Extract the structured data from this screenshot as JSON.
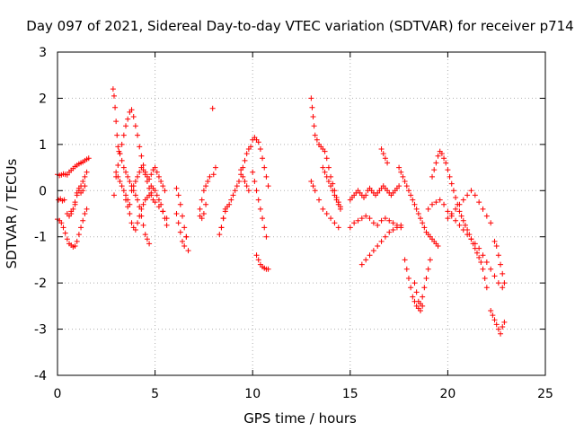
{
  "chart_data": {
    "type": "scatter",
    "title": "Day 097 of 2021, Sidereal Day-to-day VTEC variation (SDTVAR) for receiver p714",
    "xlabel": "GPS time / hours",
    "ylabel": "SDTVAR / TECUs",
    "xlim": [
      0,
      25
    ],
    "ylim": [
      -4,
      3
    ],
    "xticks": [
      "0",
      "5",
      "10",
      "15",
      "20",
      "25"
    ],
    "yticks": [
      "3",
      "2",
      "1",
      "0",
      "-1",
      "-2",
      "-3",
      "-4"
    ],
    "grid": true,
    "marker": "+",
    "color": "#ff0000",
    "series": [
      {
        "name": "SDTVAR",
        "x": [
          0.0,
          0.1,
          0.2,
          0.3,
          0.4,
          0.5,
          0.6,
          0.7,
          0.8,
          0.9,
          1.0,
          1.1,
          1.2,
          1.3,
          1.4,
          1.5,
          1.6,
          0.0,
          0.1,
          0.2,
          0.3,
          0.4,
          0.5,
          0.6,
          0.7,
          0.8,
          0.9,
          1.0,
          1.1,
          1.2,
          1.3,
          1.4,
          1.5,
          0.05,
          0.15,
          0.25,
          0.35,
          0.5,
          0.7,
          0.9,
          1.0,
          1.1,
          1.2,
          1.3,
          1.4,
          1.5,
          0.6,
          0.7,
          0.8,
          0.9,
          1.0,
          1.1,
          1.2,
          1.3,
          1.4,
          2.85,
          2.9,
          2.95,
          3.0,
          3.05,
          3.1,
          3.15,
          3.2,
          3.3,
          3.4,
          3.5,
          3.6,
          3.7,
          3.8,
          3.9,
          4.0,
          4.1,
          4.2,
          4.3,
          4.4,
          4.5,
          4.6,
          4.7,
          4.8,
          4.9,
          5.0,
          5.1,
          5.2,
          5.3,
          5.4,
          5.5,
          5.6,
          2.9,
          3.0,
          3.1,
          3.2,
          3.3,
          3.4,
          3.5,
          3.6,
          3.7,
          3.8,
          3.9,
          4.0,
          4.1,
          4.2,
          4.3,
          4.4,
          4.5,
          4.6,
          4.7,
          4.8,
          4.9,
          5.0,
          5.1,
          5.2,
          5.3,
          5.4,
          5.5,
          3.0,
          3.1,
          3.2,
          3.3,
          3.4,
          3.5,
          3.6,
          3.7,
          3.8,
          3.9,
          4.0,
          4.1,
          4.2,
          4.3,
          4.4,
          4.5,
          4.6,
          4.7,
          4.8,
          4.9,
          5.0,
          5.2,
          5.4,
          5.6,
          3.5,
          3.6,
          3.7,
          3.8,
          3.9,
          4.0,
          4.1,
          4.2,
          4.3,
          4.4,
          4.5,
          4.6,
          4.7,
          4.8,
          6.1,
          6.2,
          6.3,
          6.4,
          6.5,
          6.6,
          6.7,
          6.1,
          6.2,
          6.3,
          6.4,
          6.5,
          6.6,
          7.3,
          7.4,
          7.5,
          7.6,
          7.7,
          7.8,
          7.3,
          7.4,
          7.5,
          7.6,
          8.0,
          8.1,
          8.3,
          8.4,
          8.5,
          8.6,
          8.7,
          8.8,
          8.9,
          9.0,
          9.1,
          9.2,
          9.3,
          9.4,
          9.5,
          9.6,
          9.7,
          9.8,
          9.9,
          8.4,
          8.5,
          8.6,
          9.4,
          9.5,
          9.6,
          9.7,
          9.8,
          10.0,
          10.1,
          10.2,
          10.3,
          10.4,
          10.5,
          10.6,
          10.7,
          10.8,
          10.0,
          10.1,
          10.2,
          10.3,
          10.4,
          10.5,
          10.6,
          10.7,
          10.2,
          10.3,
          10.4,
          10.5,
          10.6,
          10.7,
          10.8,
          13.0,
          13.05,
          13.1,
          13.15,
          13.2,
          13.3,
          13.4,
          13.5,
          13.6,
          13.7,
          13.8,
          13.9,
          14.0,
          14.1,
          14.2,
          14.3,
          14.4,
          14.5,
          13.0,
          13.1,
          13.2,
          13.4,
          13.6,
          13.8,
          14.0,
          14.2,
          14.4,
          13.6,
          13.7,
          13.8,
          13.9,
          14.0,
          14.1,
          14.2,
          14.3,
          14.4,
          14.5,
          15.0,
          15.1,
          15.2,
          15.3,
          15.4,
          15.5,
          15.6,
          15.7,
          15.8,
          15.9,
          16.0,
          16.1,
          16.2,
          16.3,
          16.4,
          16.5,
          16.6,
          16.7,
          16.8,
          16.9,
          17.0,
          17.1,
          17.2,
          17.3,
          17.4,
          17.5,
          15.0,
          15.2,
          15.4,
          15.6,
          15.8,
          16.0,
          16.2,
          16.4,
          16.6,
          16.8,
          17.0,
          17.2,
          17.4,
          17.6,
          15.6,
          15.8,
          16.0,
          16.2,
          16.4,
          16.6,
          16.8,
          17.0,
          17.2,
          17.4,
          17.6,
          16.6,
          16.7,
          16.8,
          16.9,
          17.5,
          17.6,
          17.7,
          17.8,
          17.9,
          18.0,
          18.1,
          18.2,
          18.3,
          18.4,
          18.5,
          18.6,
          18.7,
          18.8,
          18.9,
          19.0,
          19.1,
          19.2,
          19.3,
          19.4,
          19.5,
          17.8,
          17.9,
          18.0,
          18.1,
          18.2,
          18.3,
          18.4,
          18.5,
          18.6,
          18.7,
          18.8,
          18.9,
          19.0,
          19.1,
          18.3,
          18.4,
          18.5,
          18.6,
          18.7,
          19.2,
          19.3,
          19.4,
          19.5,
          19.6,
          19.7,
          19.8,
          19.9,
          20.0,
          20.1,
          20.2,
          20.3,
          20.4,
          20.5,
          20.6,
          20.7,
          20.8,
          20.9,
          21.0,
          21.1,
          21.2,
          21.3,
          21.4,
          21.5,
          21.6,
          21.7,
          21.8,
          21.9,
          22.0,
          19.0,
          19.2,
          19.4,
          19.6,
          19.8,
          20.0,
          20.2,
          20.4,
          20.6,
          20.8,
          21.0,
          21.2,
          21.4,
          21.6,
          21.8,
          22.0,
          22.2,
          22.4,
          22.6,
          22.8,
          20.0,
          20.2,
          20.4,
          20.6,
          20.8,
          21.0,
          21.2,
          21.4,
          21.6,
          21.8,
          22.0,
          22.2,
          22.2,
          22.3,
          22.4,
          22.5,
          22.6,
          22.7,
          22.8,
          22.9,
          22.4,
          22.5,
          22.6,
          22.7,
          22.8,
          22.9,
          7.95
        ],
        "y": [
          0.35,
          0.33,
          0.34,
          0.36,
          0.35,
          0.34,
          0.4,
          0.44,
          0.48,
          0.52,
          0.55,
          0.58,
          0.6,
          0.62,
          0.65,
          0.68,
          0.7,
          -0.62,
          -0.65,
          -0.7,
          -0.8,
          -0.92,
          -1.05,
          -1.15,
          -1.18,
          -1.22,
          -1.2,
          -1.1,
          -0.95,
          -0.8,
          -0.65,
          -0.5,
          -0.4,
          -0.2,
          -0.18,
          -0.22,
          -0.2,
          -0.5,
          -0.45,
          -0.3,
          -0.05,
          0.05,
          0.1,
          0.2,
          0.3,
          0.4,
          -0.55,
          -0.5,
          -0.4,
          -0.25,
          -0.1,
          0.0,
          -0.05,
          0.0,
          0.1,
          2.2,
          2.05,
          1.8,
          1.5,
          1.2,
          0.95,
          0.85,
          0.8,
          0.65,
          0.5,
          0.4,
          0.3,
          0.2,
          0.1,
          0.0,
          -0.1,
          -0.2,
          -0.35,
          -0.55,
          -0.75,
          -0.95,
          -1.05,
          -1.15,
          0.1,
          0.05,
          0.0,
          -0.1,
          -0.2,
          -0.3,
          -0.45,
          -0.6,
          -0.75,
          -0.1,
          0.3,
          0.55,
          0.8,
          1.0,
          1.2,
          1.4,
          1.55,
          1.7,
          1.75,
          1.6,
          1.4,
          1.2,
          0.95,
          0.75,
          0.55,
          0.4,
          0.3,
          0.25,
          0.35,
          0.45,
          0.5,
          0.4,
          0.3,
          0.2,
          0.1,
          0.0,
          0.4,
          0.3,
          0.2,
          0.1,
          0.0,
          -0.1,
          -0.2,
          -0.3,
          0.0,
          0.1,
          0.2,
          0.3,
          0.4,
          0.5,
          0.45,
          0.35,
          0.2,
          0.05,
          -0.1,
          -0.2,
          -0.25,
          -0.35,
          -0.45,
          -0.6,
          -0.2,
          -0.35,
          -0.5,
          -0.7,
          -0.8,
          -0.85,
          -0.7,
          -0.55,
          -0.4,
          -0.3,
          -0.2,
          -0.15,
          -0.1,
          -0.05,
          0.05,
          -0.1,
          -0.3,
          -0.55,
          -0.8,
          -1.0,
          -1.3,
          -0.5,
          -0.7,
          -0.9,
          -1.1,
          -1.2,
          -1.0,
          -0.4,
          -0.2,
          0.0,
          0.1,
          0.2,
          0.3,
          -0.55,
          -0.6,
          -0.5,
          -0.3,
          0.35,
          0.5,
          -0.95,
          -0.8,
          -0.6,
          -0.45,
          -0.35,
          -0.3,
          -0.2,
          -0.1,
          0.0,
          0.1,
          0.2,
          0.35,
          0.5,
          0.65,
          0.8,
          0.9,
          0.95,
          -0.8,
          -0.6,
          -0.4,
          0.45,
          0.3,
          0.2,
          0.1,
          0.0,
          1.1,
          1.15,
          1.1,
          1.05,
          0.9,
          0.7,
          0.5,
          0.3,
          0.1,
          0.4,
          0.2,
          0.0,
          -0.2,
          -0.4,
          -0.6,
          -0.8,
          -1.0,
          -1.4,
          -1.5,
          -1.6,
          -1.65,
          -1.68,
          -1.7,
          -1.7,
          2.0,
          1.8,
          1.6,
          1.4,
          1.2,
          1.1,
          1.0,
          0.95,
          0.9,
          0.85,
          0.7,
          0.5,
          0.3,
          0.15,
          0.0,
          -0.15,
          -0.25,
          -0.35,
          0.2,
          0.1,
          0.0,
          -0.2,
          -0.4,
          -0.5,
          -0.6,
          -0.7,
          -0.8,
          0.5,
          0.4,
          0.3,
          0.2,
          0.1,
          0.0,
          -0.1,
          -0.2,
          -0.3,
          -0.4,
          -0.2,
          -0.15,
          -0.1,
          -0.05,
          0.0,
          -0.05,
          -0.1,
          -0.15,
          -0.1,
          0.0,
          0.05,
          0.0,
          -0.05,
          -0.1,
          -0.05,
          0.0,
          0.05,
          0.1,
          0.05,
          0.0,
          -0.05,
          -0.1,
          -0.05,
          0.0,
          0.05,
          0.1,
          -0.8,
          -0.7,
          -0.65,
          -0.6,
          -0.55,
          -0.6,
          -0.7,
          -0.75,
          -0.65,
          -0.6,
          -0.65,
          -0.7,
          -0.75,
          -0.8,
          -1.6,
          -1.5,
          -1.4,
          -1.3,
          -1.2,
          -1.1,
          -1.0,
          -0.9,
          -0.85,
          -0.8,
          -0.75,
          0.9,
          0.8,
          0.7,
          0.6,
          0.5,
          0.4,
          0.3,
          0.2,
          0.1,
          0.0,
          -0.1,
          -0.2,
          -0.3,
          -0.4,
          -0.5,
          -0.6,
          -0.7,
          -0.8,
          -0.9,
          -0.95,
          -1.0,
          -1.05,
          -1.1,
          -1.15,
          -1.2,
          -1.5,
          -1.7,
          -1.9,
          -2.1,
          -2.3,
          -2.4,
          -2.5,
          -2.55,
          -2.45,
          -2.3,
          -2.1,
          -1.9,
          -1.7,
          -1.5,
          -2.0,
          -2.2,
          -2.4,
          -2.6,
          -2.5,
          0.3,
          0.45,
          0.6,
          0.75,
          0.85,
          0.8,
          0.7,
          0.6,
          0.45,
          0.3,
          0.15,
          0.0,
          -0.15,
          -0.3,
          -0.45,
          -0.55,
          -0.65,
          -0.75,
          -0.85,
          -0.95,
          -1.05,
          -1.15,
          -1.25,
          -1.35,
          -1.45,
          -1.55,
          -1.7,
          -1.9,
          -2.1,
          -0.4,
          -0.3,
          -0.25,
          -0.2,
          -0.3,
          -0.45,
          -0.55,
          -0.65,
          -0.75,
          -0.85,
          -0.95,
          -1.05,
          -1.15,
          -1.25,
          -1.4,
          -1.55,
          -1.7,
          -1.85,
          -2.0,
          -2.1,
          -0.6,
          -0.5,
          -0.4,
          -0.3,
          -0.2,
          -0.1,
          0.0,
          -0.1,
          -0.25,
          -0.4,
          -0.55,
          -0.7,
          -2.6,
          -2.7,
          -2.8,
          -2.9,
          -3.0,
          -3.1,
          -2.95,
          -2.85,
          -1.1,
          -1.2,
          -1.4,
          -1.6,
          -1.8,
          -2.0,
          1.78
        ]
      }
    ]
  }
}
